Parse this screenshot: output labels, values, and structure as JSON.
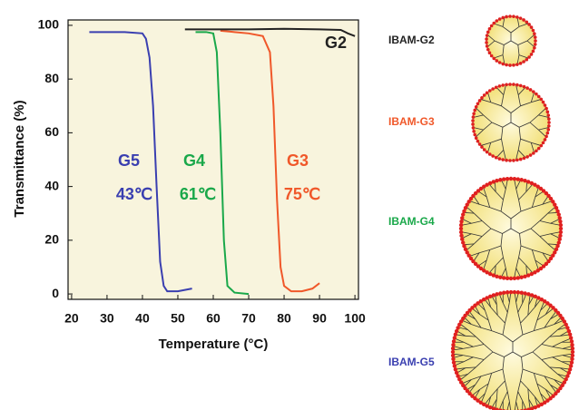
{
  "chart_data": {
    "type": "line",
    "x_label": "Temperature (°C)",
    "y_label": "Transmittance (%)",
    "xlim": [
      19,
      101
    ],
    "ylim": [
      -2,
      102
    ],
    "xticks": [
      20,
      30,
      40,
      50,
      60,
      70,
      80,
      90,
      100
    ],
    "yticks": [
      0,
      20,
      40,
      60,
      80,
      100
    ],
    "background": "#f8f4dd",
    "series": [
      {
        "name": "G5",
        "color": "#3a3fb0",
        "x": [
          25,
          30,
          35,
          40,
          41,
          42,
          43,
          44,
          45,
          46,
          47,
          50,
          54
        ],
        "values": [
          97.5,
          97.5,
          97.5,
          97,
          95,
          88,
          70,
          40,
          12,
          3,
          1,
          1,
          2
        ]
      },
      {
        "name": "G4",
        "color": "#1aa84a",
        "x": [
          55,
          58,
          60,
          61,
          62,
          63,
          64,
          66,
          70
        ],
        "values": [
          97.5,
          97.5,
          97,
          90,
          60,
          20,
          3,
          0.5,
          0
        ]
      },
      {
        "name": "G3",
        "color": "#f0582a",
        "x": [
          62,
          66,
          70,
          74,
          76,
          77,
          78,
          79,
          80,
          82,
          85,
          88,
          90
        ],
        "values": [
          98,
          97.5,
          97,
          96,
          90,
          70,
          35,
          10,
          3,
          1,
          1,
          2,
          4
        ]
      },
      {
        "name": "G2",
        "color": "#222222",
        "x": [
          52,
          60,
          70,
          80,
          90,
          96,
          98,
          100
        ],
        "values": [
          98.5,
          98.5,
          98.5,
          98.7,
          98.5,
          98.3,
          97,
          96
        ]
      }
    ],
    "annotations": [
      {
        "text": "43℃",
        "color": "#3a3fb0"
      },
      {
        "text": "61℃",
        "color": "#1aa84a"
      },
      {
        "text": "75℃",
        "color": "#f0582a"
      }
    ]
  },
  "diagram": {
    "labels": [
      {
        "text": "IBAM-G2",
        "color": "#222222"
      },
      {
        "text": "IBAM-G3",
        "color": "#f0582a"
      },
      {
        "text": "IBAM-G4",
        "color": "#1aa84a"
      },
      {
        "text": "IBAM-G5",
        "color": "#3a3fb0"
      }
    ]
  }
}
